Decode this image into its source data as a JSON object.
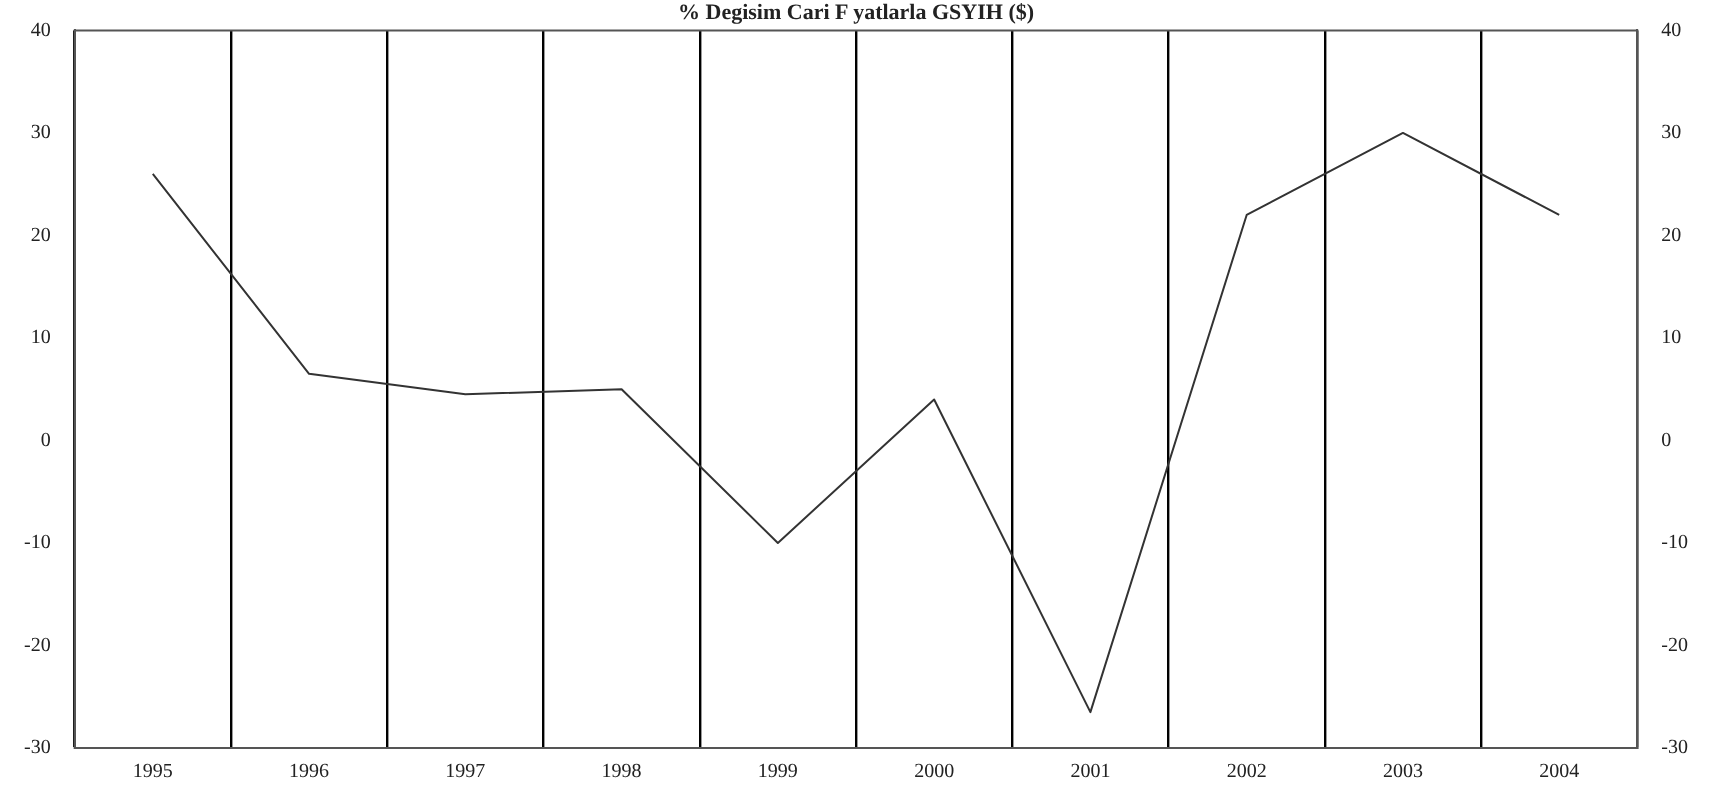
{
  "chart_data": {
    "type": "line",
    "title": "% Degisim Cari F yatlarla GSYIH ($)",
    "categories": [
      "1995",
      "1996",
      "1997",
      "1998",
      "1999",
      "2000",
      "2001",
      "2002",
      "2003",
      "2004"
    ],
    "series": [
      {
        "color": "#333333",
        "values": [
          26,
          6.5,
          4.5,
          5,
          -10,
          4,
          -26.5,
          22,
          30,
          22
        ]
      }
    ],
    "ylim": [
      -30,
      40
    ],
    "yticks": [
      -30,
      -20,
      -10,
      0,
      10,
      20,
      30,
      40
    ],
    "y2lim": [
      -30,
      40
    ],
    "y2ticks": [
      -30,
      -20,
      -10,
      0,
      10,
      20,
      30,
      40
    ],
    "grid": "x",
    "legend": false,
    "marker": "none",
    "line_style": "solid"
  }
}
